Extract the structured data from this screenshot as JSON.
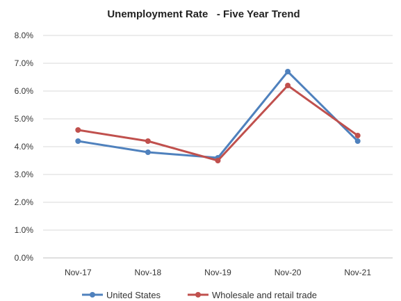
{
  "chart_data": {
    "type": "line",
    "title": "Unemployment Rate   - Five Year Trend",
    "categories": [
      "Nov-17",
      "Nov-18",
      "Nov-19",
      "Nov-20",
      "Nov-21"
    ],
    "series": [
      {
        "name": "United States",
        "color": "#4F81BD",
        "values": [
          4.2,
          3.8,
          3.6,
          6.7,
          4.2
        ]
      },
      {
        "name": "Wholesale and retail trade",
        "color": "#C0504D",
        "values": [
          4.6,
          4.2,
          3.5,
          6.2,
          4.4
        ]
      }
    ],
    "y_ticks": [
      "0.0%",
      "1.0%",
      "2.0%",
      "3.0%",
      "4.0%",
      "5.0%",
      "6.0%",
      "7.0%",
      "8.0%"
    ],
    "ylim": [
      0,
      8
    ],
    "xlabel": "",
    "ylabel": "",
    "grid": "horizontal",
    "legend_position": "bottom"
  }
}
